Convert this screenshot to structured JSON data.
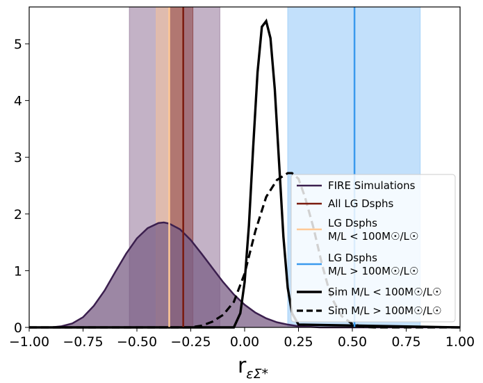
{
  "chart_data": {
    "type": "area",
    "xlabel": "r",
    "xlabel_subscript": "εΣ*",
    "ylabel": "",
    "xlim": [
      -1.0,
      1.0
    ],
    "ylim": [
      0,
      5.65
    ],
    "xticks": [
      -1.0,
      -0.75,
      -0.5,
      -0.25,
      0.0,
      0.25,
      0.5,
      0.75,
      1.0
    ],
    "xtick_labels": [
      "−1.00",
      "−0.75",
      "−0.50",
      "−0.25",
      "0.00",
      "0.25",
      "0.50",
      "0.75",
      "1.00"
    ],
    "yticks": [
      0,
      1,
      2,
      3,
      4,
      5
    ],
    "ytick_labels": [
      "0",
      "1",
      "2",
      "3",
      "4",
      "5"
    ],
    "grid": false,
    "legend_position": "lower-right",
    "colors": {
      "fire": "#3b1f4e",
      "fire_fill": "#7b5f86",
      "all_lg": "#7a1a0e",
      "all_lg_band": "#8a3f3f",
      "purple_band": "#9b7fa0",
      "lg_low": "#ffc996",
      "lg_low_band": "#f6c39a",
      "lg_high": "#3a9aee",
      "lg_high_band": "#99ccf8",
      "sim": "#000000"
    },
    "bands": [
      {
        "series": "FIRE Simulations",
        "xmin": -0.535,
        "xmax": -0.115
      },
      {
        "series": "LG Dsphs M/L < 100 M/L",
        "xmin": -0.41,
        "xmax": -0.29
      },
      {
        "series": "All LG Dsphs",
        "xmin": -0.35,
        "xmax": -0.24
      },
      {
        "series": "LG Dsphs M/L > 100 M/L",
        "xmin": 0.2,
        "xmax": 0.815
      }
    ],
    "vlines": [
      {
        "series": "LG Dsphs M/L < 100 M/L",
        "x": -0.35
      },
      {
        "series": "All LG Dsphs",
        "x": -0.285
      },
      {
        "series": "LG Dsphs M/L > 100 M/L",
        "x": 0.51
      }
    ],
    "series": [
      {
        "name": "FIRE Simulations",
        "x": [
          -1.0,
          -0.9,
          -0.85,
          -0.8,
          -0.75,
          -0.7,
          -0.65,
          -0.6,
          -0.55,
          -0.5,
          -0.45,
          -0.4,
          -0.375,
          -0.35,
          -0.3,
          -0.25,
          -0.2,
          -0.15,
          -0.1,
          -0.05,
          0.0,
          0.05,
          0.1,
          0.15,
          0.2,
          0.25,
          0.3,
          0.35,
          0.4,
          1.0
        ],
        "y": [
          0.0,
          0.0,
          0.02,
          0.07,
          0.18,
          0.38,
          0.65,
          0.98,
          1.3,
          1.57,
          1.75,
          1.84,
          1.85,
          1.83,
          1.73,
          1.54,
          1.3,
          1.05,
          0.8,
          0.58,
          0.4,
          0.26,
          0.16,
          0.09,
          0.05,
          0.02,
          0.01,
          0.0,
          0.0,
          0.0
        ]
      },
      {
        "name": "Sim M/L < 100 M/L",
        "x": [
          -1.0,
          -0.05,
          -0.02,
          0.0,
          0.02,
          0.04,
          0.06,
          0.08,
          0.1,
          0.12,
          0.14,
          0.16,
          0.18,
          0.2,
          0.22,
          0.25,
          1.0
        ],
        "y": [
          0.0,
          0.0,
          0.25,
          0.8,
          1.8,
          3.2,
          4.5,
          5.3,
          5.4,
          5.1,
          4.2,
          2.9,
          1.6,
          0.7,
          0.25,
          0.05,
          0.0
        ]
      },
      {
        "name": "Sim M/L > 100 M/L",
        "x": [
          -1.0,
          -0.25,
          -0.2,
          -0.15,
          -0.1,
          -0.05,
          0.0,
          0.05,
          0.1,
          0.15,
          0.2,
          0.22,
          0.25,
          0.28,
          0.32,
          0.36,
          0.4,
          0.45,
          0.5,
          0.55,
          0.6,
          1.0
        ],
        "y": [
          0.0,
          0.0,
          0.03,
          0.1,
          0.22,
          0.45,
          0.95,
          1.7,
          2.3,
          2.6,
          2.72,
          2.72,
          2.62,
          2.3,
          1.75,
          1.1,
          0.55,
          0.2,
          0.06,
          0.01,
          0.0,
          0.0
        ]
      }
    ],
    "legend": [
      {
        "key": "fire",
        "line": "FIRE Simulations"
      },
      {
        "key": "all_lg",
        "line": "All LG Dsphs"
      },
      {
        "key": "lg_low",
        "line": "LG Dsphs",
        "line2": "M/L < 100M☉/L☉"
      },
      {
        "key": "lg_high",
        "line": "LG Dsphs",
        "line2": "M/L > 100M☉/L☉"
      },
      {
        "key": "sim_low",
        "line": "Sim M/L < 100M☉/L☉"
      },
      {
        "key": "sim_high",
        "line": "Sim M/L > 100M☉/L☉"
      }
    ]
  }
}
